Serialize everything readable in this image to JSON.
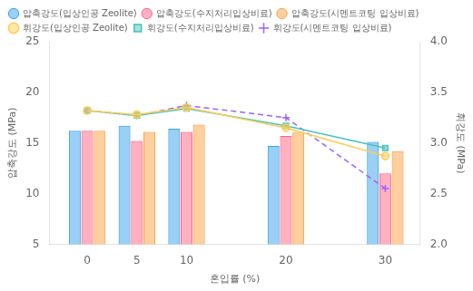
{
  "chart_data": {
    "type": "bar",
    "x": [
      0,
      5,
      10,
      20,
      30
    ],
    "xlim": [
      -3.8,
      33.5
    ],
    "xticks": [
      0,
      5,
      10,
      20,
      30
    ],
    "xlabel": "혼입률 (%)",
    "ylabel": "압축강도 (MPa)",
    "y2label": "휘강도 (MPa)",
    "ylim": [
      5,
      25
    ],
    "yticks": [
      5,
      10,
      15,
      20,
      25
    ],
    "y2lim": [
      2.0,
      4.0
    ],
    "y2ticks": [
      {
        "value": 2.0,
        "label": "2.0"
      },
      2.5,
      {
        "value": 3.0,
        "label": "3.0"
      },
      3.5,
      {
        "value": 4.0,
        "label": "4.0"
      }
    ],
    "grid": false,
    "legend": "upper left",
    "series": [
      {
        "name": "압축강도(입상인공 Zeolite)",
        "type": "bar",
        "values": [
          16.2,
          16.7,
          16.4,
          14.7,
          15.1
        ]
      },
      {
        "name": "압축강도(수지처리입상비료)",
        "type": "bar",
        "values": [
          16.2,
          15.2,
          16.1,
          15.7,
          12.0
        ]
      },
      {
        "name": "압축강도(시멘트코팅 입상비료)",
        "type": "bar",
        "values": [
          16.2,
          16.1,
          16.8,
          16.1,
          14.2
        ]
      },
      {
        "name": "휘강도(입상인공 Zeolite)",
        "type": "line",
        "axis": "y2",
        "marker": "circle",
        "line_style": "solid",
        "values": [
          3.32,
          3.28,
          3.35,
          3.15,
          2.87
        ]
      },
      {
        "name": "휘강도(수지처리입상비료)",
        "type": "line",
        "axis": "y2",
        "marker": "square",
        "line_style": "solid",
        "values": [
          3.32,
          3.27,
          3.34,
          3.17,
          2.95
        ]
      },
      {
        "name": "휘강도(시멘트코팅 입상비료)",
        "type": "line",
        "axis": "y2",
        "marker": "cross",
        "line_style": "dashed",
        "values": [
          3.32,
          3.27,
          3.37,
          3.25,
          2.55
        ]
      }
    ]
  }
}
